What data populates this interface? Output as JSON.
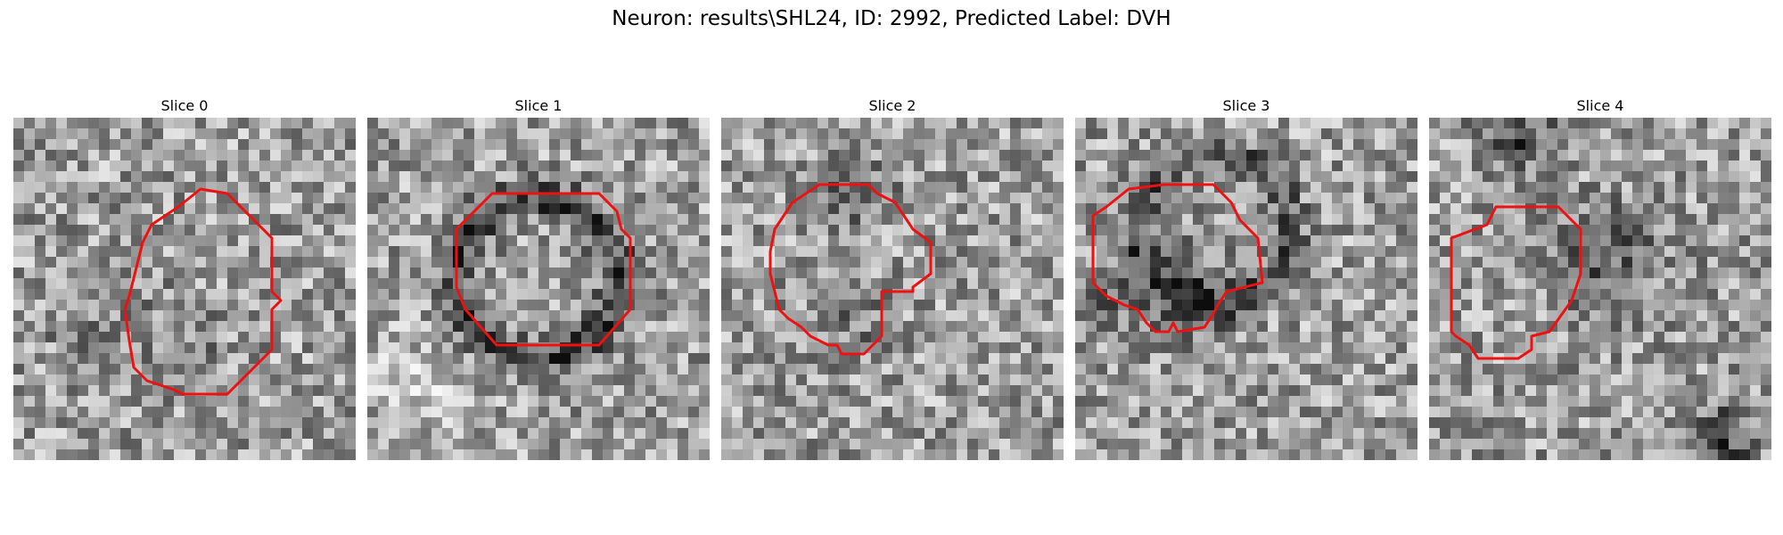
{
  "figure": {
    "title": "Neuron: results\\SHL24, ID: 2992, Predicted Label: DVH"
  },
  "panels": [
    {
      "title": "Slice 0"
    },
    {
      "title": "Slice 1"
    },
    {
      "title": "Slice 2"
    },
    {
      "title": "Slice 3"
    },
    {
      "title": "Slice 4"
    }
  ],
  "style": {
    "contour_color": "#ee1111",
    "colormap": "grayscale"
  }
}
